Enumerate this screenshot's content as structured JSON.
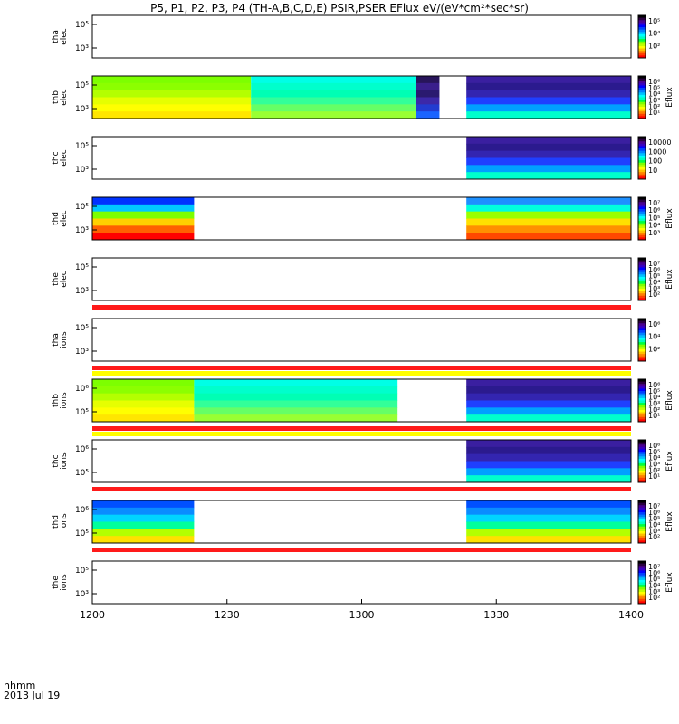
{
  "title": "P5, P1, P2, P3, P4 (TH-A,B,C,D,E) PSIR,PSER EFlux eV/(eV*cm²*sec*sr)",
  "footer": {
    "line1": "hhmm",
    "line2": "2013 Jul 19"
  },
  "chart_data": {
    "type": "heatmap",
    "x_tick_labels": [
      "1200",
      "1230",
      "1300",
      "1330",
      "1400"
    ],
    "x_range_minutes": [
      0,
      120
    ],
    "panels": [
      {
        "name": "tha_elec",
        "ylabel": [
          "tha",
          "elec"
        ],
        "y_tick_labels": [
          "10⁵",
          "10³"
        ],
        "colorbar": {
          "label": "",
          "ticks": [
            "10⁵",
            "10⁴",
            "10²"
          ]
        },
        "data_blocks": [],
        "status_bar": []
      },
      {
        "name": "thb_elec",
        "ylabel": [
          "thb",
          "elec"
        ],
        "y_tick_labels": [
          "10⁵",
          "10³"
        ],
        "colorbar": {
          "label": "Eflux",
          "ticks": [
            "10⁶",
            "10⁵",
            "10⁴",
            "10³",
            "10²",
            "10¹"
          ]
        },
        "data_blocks": [
          {
            "x0": 0,
            "x1": 53,
            "level": "high"
          },
          {
            "x0": 53,
            "x1": 108,
            "level": "medium"
          },
          {
            "x0": 108,
            "x1": 116,
            "level": "very-low"
          },
          {
            "x0": 125,
            "x1": 180,
            "level": "low"
          }
        ],
        "status_bar": []
      },
      {
        "name": "thc_elec",
        "ylabel": [
          "thc",
          "elec"
        ],
        "y_tick_labels": [
          "10⁵",
          "10³"
        ],
        "colorbar": {
          "label": "",
          "ticks": [
            "10000",
            "1000",
            "100",
            "10"
          ]
        },
        "data_blocks": [
          {
            "x0": 125,
            "x1": 180,
            "level": "low"
          }
        ],
        "status_bar": []
      },
      {
        "name": "thd_elec",
        "ylabel": [
          "thd",
          "elec"
        ],
        "y_tick_labels": [
          "10⁵",
          "10³"
        ],
        "colorbar": {
          "label": "Eflux",
          "ticks": [
            "10⁷",
            "10⁶",
            "10⁵",
            "10⁴",
            "10³"
          ]
        },
        "data_blocks": [
          {
            "x0": 0,
            "x1": 34,
            "level": "hot"
          },
          {
            "x0": 125,
            "x1": 180,
            "level": "warm"
          }
        ],
        "status_bar": []
      },
      {
        "name": "the_elec",
        "ylabel": [
          "the",
          "elec"
        ],
        "y_tick_labels": [
          "10⁵",
          "10³"
        ],
        "colorbar": {
          "label": "Eflux",
          "ticks": [
            "10⁷",
            "10⁶",
            "10⁵",
            "10⁴",
            "10³",
            "10²"
          ]
        },
        "data_blocks": [],
        "status_bar": [
          "red"
        ]
      },
      {
        "name": "tha_ions",
        "ylabel": [
          "tha",
          "ions"
        ],
        "y_tick_labels": [
          "10⁵",
          "10³"
        ],
        "colorbar": {
          "label": "",
          "ticks": [
            "10⁶",
            "10⁴",
            "10²"
          ]
        },
        "data_blocks": [],
        "status_bar": [
          "red",
          "yellow"
        ]
      },
      {
        "name": "thb_ions",
        "ylabel": [
          "thb",
          "ions"
        ],
        "y_tick_labels": [
          "10⁶",
          "10⁵"
        ],
        "colorbar": {
          "label": "Eflux",
          "ticks": [
            "10⁶",
            "10⁵",
            "10⁴",
            "10³",
            "10²",
            "10¹"
          ]
        },
        "data_blocks": [
          {
            "x0": 0,
            "x1": 34,
            "level": "high"
          },
          {
            "x0": 34,
            "x1": 102,
            "level": "medium"
          },
          {
            "x0": 125,
            "x1": 180,
            "level": "low"
          }
        ],
        "status_bar": [
          "red",
          "yellow"
        ]
      },
      {
        "name": "thc_ions",
        "ylabel": [
          "thc",
          "ions"
        ],
        "y_tick_labels": [
          "10⁶",
          "10⁵"
        ],
        "colorbar": {
          "label": "Eflux",
          "ticks": [
            "10⁶",
            "10⁵",
            "10⁴",
            "10³",
            "10²",
            "10¹"
          ]
        },
        "data_blocks": [
          {
            "x0": 125,
            "x1": 180,
            "level": "low"
          }
        ],
        "status_bar": [
          "red"
        ]
      },
      {
        "name": "thd_ions",
        "ylabel": [
          "thd",
          "ions"
        ],
        "y_tick_labels": [
          "10⁶",
          "10⁵"
        ],
        "colorbar": {
          "label": "Eflux",
          "ticks": [
            "10⁷",
            "10⁶",
            "10⁵",
            "10⁴",
            "10³",
            "10²"
          ]
        },
        "data_blocks": [
          {
            "x0": 0,
            "x1": 34,
            "level": "cool"
          },
          {
            "x0": 125,
            "x1": 180,
            "level": "cool"
          }
        ],
        "status_bar": [
          "red"
        ]
      },
      {
        "name": "the_ions",
        "ylabel": [
          "the",
          "ions"
        ],
        "y_tick_labels": [
          "10⁵",
          "10³"
        ],
        "colorbar": {
          "label": "Eflux",
          "ticks": [
            "10⁷",
            "10⁶",
            "10⁵",
            "10⁴",
            "10³",
            "10²"
          ]
        },
        "data_blocks": [],
        "status_bar": []
      }
    ]
  }
}
